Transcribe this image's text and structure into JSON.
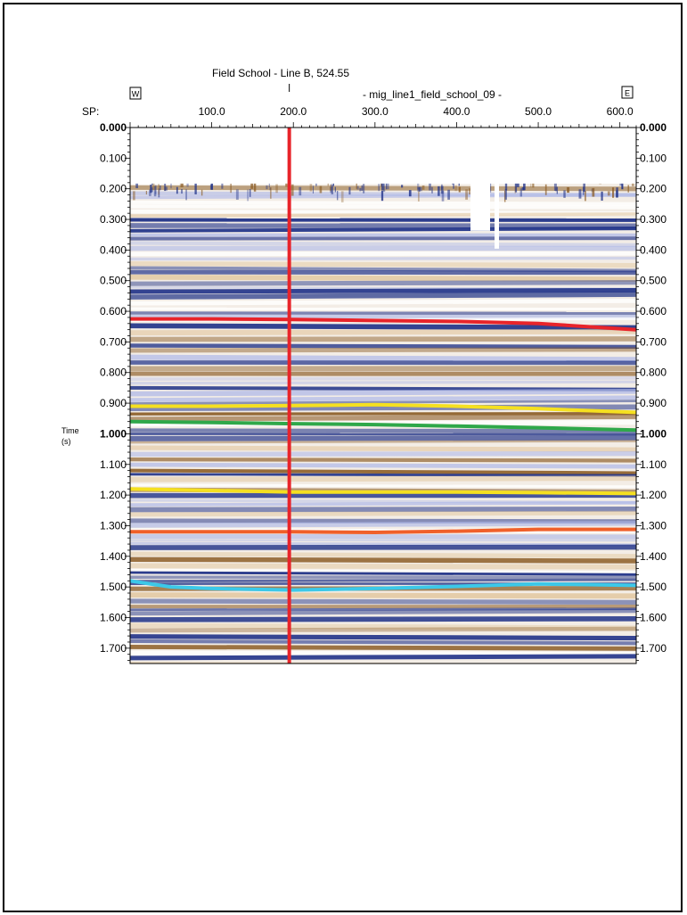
{
  "chart_data": {
    "type": "seismic-section",
    "title": "Field School - Line B, 524.55",
    "subtitle": "- mig_line1_field_school_09 -",
    "left_end": "W",
    "right_end": "E",
    "x_axis_label": "SP:",
    "x_ticks": [
      "100.0",
      "200.0",
      "300.0",
      "400.0",
      "500.0",
      "600.0"
    ],
    "xlim": [
      0,
      620
    ],
    "y_axis_label_line1": "Time",
    "y_axis_label_line2": "(s)",
    "y_ticks": [
      "0.000",
      "0.100",
      "0.200",
      "0.300",
      "0.400",
      "0.500",
      "0.600",
      "0.700",
      "0.800",
      "0.900",
      "1.000",
      "1.100",
      "1.200",
      "1.300",
      "1.400",
      "1.500",
      "1.600",
      "1.700"
    ],
    "ylim": [
      0.0,
      1.75
    ],
    "cursor_sp": 195,
    "cursor_color": "#e8242a",
    "data_start_time": 0.18,
    "horizons": [
      {
        "color": "#e8242a",
        "points": [
          [
            0,
            0.625
          ],
          [
            100,
            0.625
          ],
          [
            200,
            0.627
          ],
          [
            300,
            0.63
          ],
          [
            400,
            0.633
          ],
          [
            500,
            0.64
          ],
          [
            620,
            0.66
          ]
        ]
      },
      {
        "color": "#f5e020",
        "points": [
          [
            0,
            0.91
          ],
          [
            100,
            0.91
          ],
          [
            200,
            0.908
          ],
          [
            300,
            0.905
          ],
          [
            400,
            0.91
          ],
          [
            500,
            0.918
          ],
          [
            620,
            0.93
          ]
        ]
      },
      {
        "color": "#2fa84a",
        "points": [
          [
            0,
            0.96
          ],
          [
            100,
            0.963
          ],
          [
            200,
            0.967
          ],
          [
            300,
            0.97
          ],
          [
            400,
            0.975
          ],
          [
            500,
            0.98
          ],
          [
            620,
            0.988
          ]
        ]
      },
      {
        "color": "#f5e020",
        "points": [
          [
            0,
            1.18
          ],
          [
            100,
            1.185
          ],
          [
            200,
            1.19
          ],
          [
            300,
            1.19
          ],
          [
            400,
            1.19
          ],
          [
            500,
            1.192
          ],
          [
            620,
            1.195
          ]
        ]
      },
      {
        "color": "#f0602a",
        "points": [
          [
            0,
            1.32
          ],
          [
            100,
            1.32
          ],
          [
            200,
            1.32
          ],
          [
            300,
            1.322
          ],
          [
            400,
            1.318
          ],
          [
            500,
            1.312
          ],
          [
            620,
            1.312
          ]
        ]
      },
      {
        "color": "#3cc8e8",
        "points": [
          [
            0,
            1.48
          ],
          [
            50,
            1.5
          ],
          [
            100,
            1.505
          ],
          [
            200,
            1.51
          ],
          [
            300,
            1.505
          ],
          [
            400,
            1.498
          ],
          [
            500,
            1.49
          ],
          [
            620,
            1.495
          ]
        ]
      }
    ],
    "colors": {
      "blue": "#1b2e86",
      "brown": "#8a5a22",
      "tan": "#e2c79e",
      "lightblue": "#aeb8e8"
    }
  }
}
